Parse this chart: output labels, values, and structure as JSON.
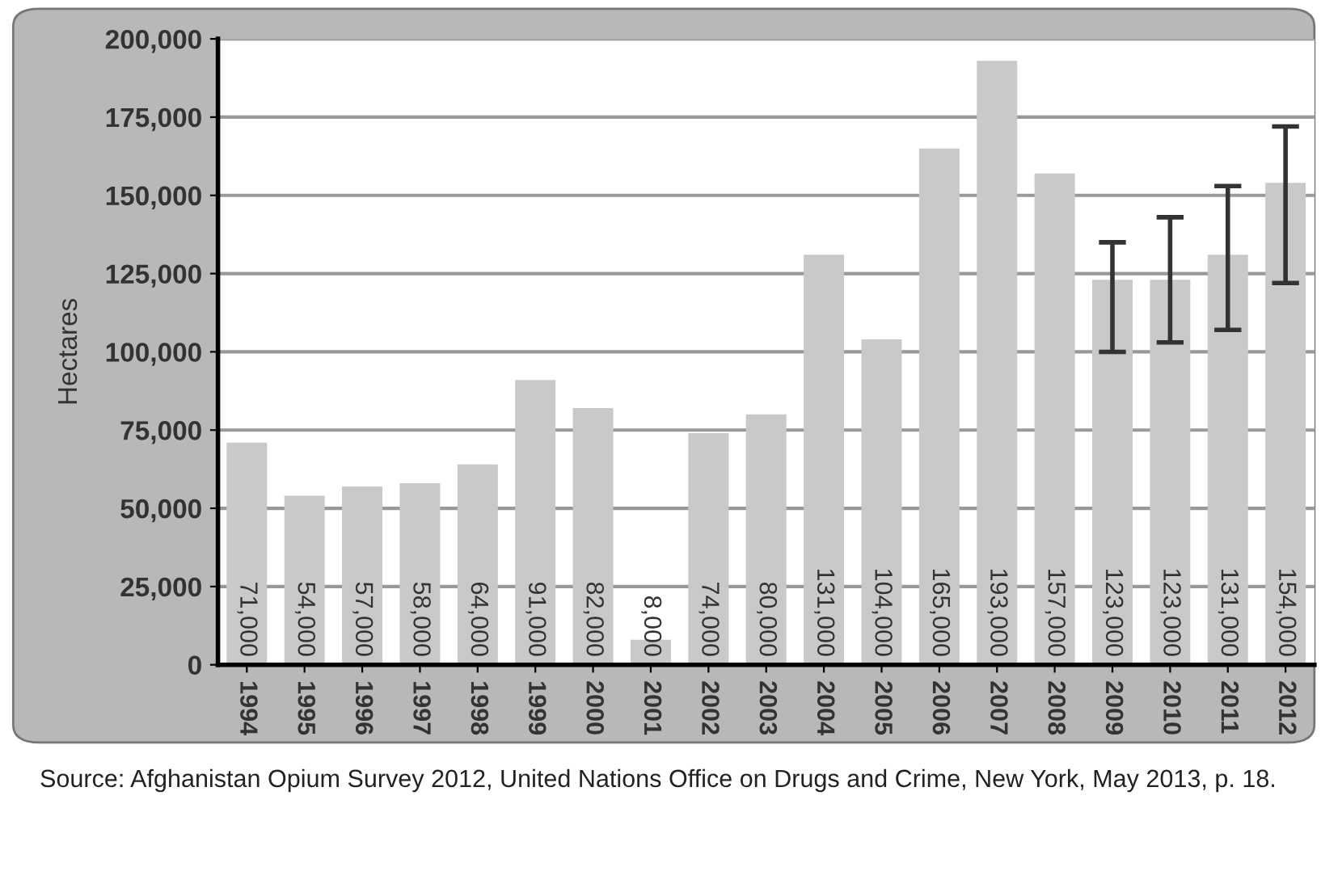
{
  "chart_data": {
    "type": "bar",
    "ylabel": "Hectares",
    "categories": [
      "1994",
      "1995",
      "1996",
      "1997",
      "1998",
      "1999",
      "2000",
      "2001",
      "2002",
      "2003",
      "2004",
      "2005",
      "2006",
      "2007",
      "2008",
      "2009",
      "2010",
      "2011",
      "2012"
    ],
    "values": [
      71000,
      54000,
      57000,
      58000,
      64000,
      91000,
      82000,
      8000,
      74000,
      80000,
      131000,
      104000,
      165000,
      193000,
      157000,
      123000,
      123000,
      131000,
      154000
    ],
    "errors": [
      null,
      null,
      null,
      null,
      null,
      null,
      null,
      null,
      null,
      null,
      null,
      null,
      null,
      null,
      null,
      [
        100000,
        135000
      ],
      [
        103000,
        143000
      ],
      [
        107000,
        153000
      ],
      [
        122000,
        172000
      ]
    ],
    "color": "#c9c9c9",
    "ylim": [
      0,
      200000
    ],
    "yticks": [
      {
        "value": 0,
        "label": "0"
      },
      {
        "value": 25000,
        "label": "25,000"
      },
      {
        "value": 50000,
        "label": "50,000"
      },
      {
        "value": 75000,
        "label": "75,000"
      },
      {
        "value": 100000,
        "label": "100,000"
      },
      {
        "value": 125000,
        "label": "125,000"
      },
      {
        "value": 150000,
        "label": "150,000"
      },
      {
        "value": 175000,
        "label": "175,000"
      },
      {
        "value": 200000,
        "label": "200,000"
      }
    ],
    "value_labels": [
      "71,000",
      "54,000",
      "57,000",
      "58,000",
      "64,000",
      "91,000",
      "82,000",
      "8,000",
      "74,000",
      "80,000",
      "131,000",
      "104,000",
      "165,000",
      "193,000",
      "157,000",
      "123,000",
      "123,000",
      "131,000",
      "154,000"
    ],
    "grid": "y",
    "legend": false,
    "annotations": [
      "Source: Afghanistan Opium Survey 2012, United Nations Office on Drugs and Crime, New York, May 2013, p. 18."
    ]
  }
}
